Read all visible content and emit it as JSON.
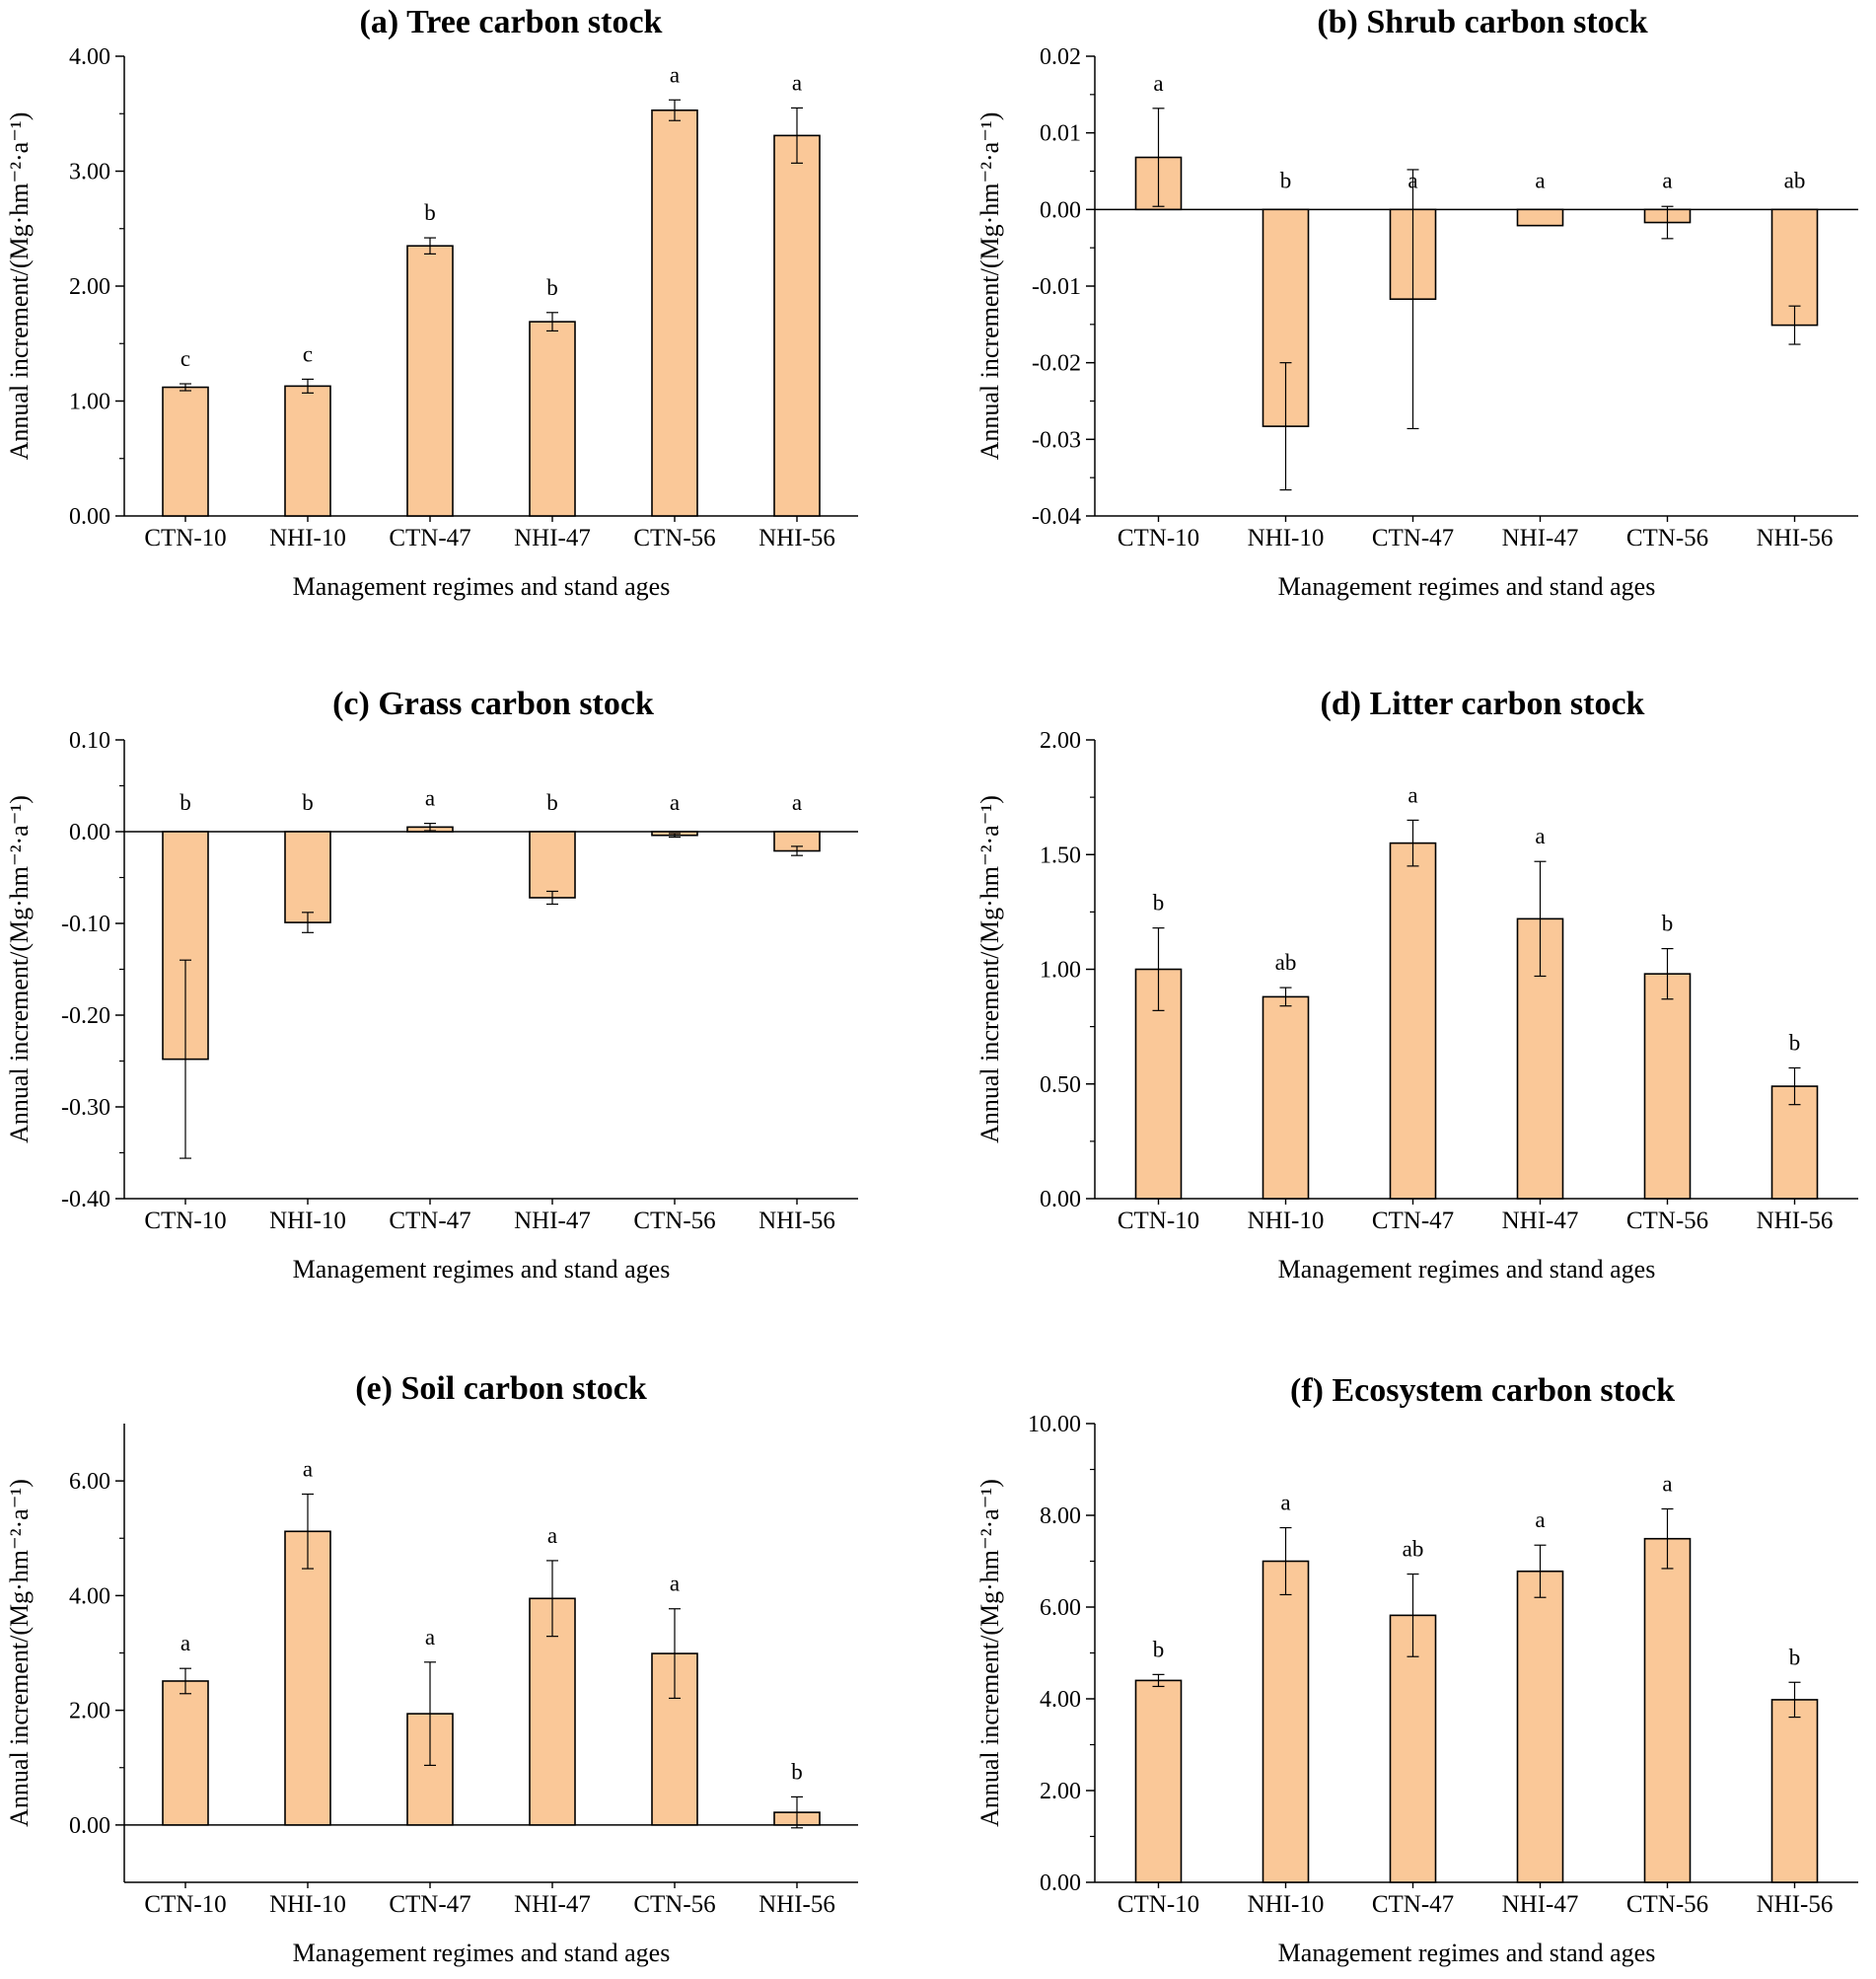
{
  "bar_color": "#FAC898",
  "bar_stroke": "#000000",
  "chart_data": [
    {
      "type": "bar",
      "title": "(a)  Tree carbon stock",
      "xlabel": "Management regimes and stand ages",
      "ylabel": "Annual increment/(Mg·hm⁻²·a⁻¹)",
      "categories": [
        "CTN-10",
        "NHI-10",
        "CTN-47",
        "NHI-47",
        "CTN-56",
        "NHI-56"
      ],
      "values": [
        1.12,
        1.13,
        2.35,
        1.69,
        3.53,
        3.31
      ],
      "errors": [
        0.03,
        0.06,
        0.07,
        0.08,
        0.09,
        0.24
      ],
      "significance": [
        "c",
        "c",
        "b",
        "b",
        "a",
        "a"
      ],
      "ylim": [
        0,
        4
      ],
      "yticks": [
        0,
        1,
        2,
        3,
        4
      ],
      "ytick_labels": [
        "0.00",
        "1.00",
        "2.00",
        "3.00",
        "4.00"
      ]
    },
    {
      "type": "bar",
      "title": "(b)  Shrub carbon stock",
      "xlabel": "Management regimes and stand ages",
      "ylabel": "Annual increment/(Mg·hm⁻²·a⁻¹)",
      "categories": [
        "CTN-10",
        "NHI-10",
        "CTN-47",
        "NHI-47",
        "CTN-56",
        "NHI-56"
      ],
      "values": [
        0.0068,
        -0.0283,
        -0.0117,
        -0.0021,
        -0.0017,
        -0.0151
      ],
      "errors": [
        0.0064,
        0.0083,
        0.0169,
        0.0,
        0.0021,
        0.0025
      ],
      "significance": [
        "a",
        "b",
        "a",
        "a",
        "a",
        "ab"
      ],
      "ylim": [
        -0.04,
        0.02
      ],
      "yticks": [
        -0.04,
        -0.03,
        -0.02,
        -0.01,
        0,
        0.01,
        0.02
      ],
      "ytick_labels": [
        "-0.04",
        "-0.03",
        "-0.02",
        "-0.01",
        "0.00",
        "0.01",
        "0.02"
      ]
    },
    {
      "type": "bar",
      "title": "(c)  Grass carbon stock",
      "xlabel": "Management regimes and stand ages",
      "ylabel": "Annual increment/(Mg·hm⁻²·a⁻¹)",
      "categories": [
        "CTN-10",
        "NHI-10",
        "CTN-47",
        "NHI-47",
        "CTN-56",
        "NHI-56"
      ],
      "values": [
        -0.248,
        -0.099,
        0.005,
        -0.072,
        -0.004,
        -0.021
      ],
      "errors": [
        0.108,
        0.011,
        0.004,
        0.007,
        0.002,
        0.005
      ],
      "significance": [
        "b",
        "b",
        "a",
        "b",
        "a",
        "a"
      ],
      "ylim": [
        -0.4,
        0.1
      ],
      "yticks": [
        -0.4,
        -0.3,
        -0.2,
        -0.1,
        0,
        0.1
      ],
      "ytick_labels": [
        "-0.40",
        "-0.30",
        "-0.20",
        "-0.10",
        "0.00",
        "0.10"
      ]
    },
    {
      "type": "bar",
      "title": "(d)  Litter carbon stock",
      "xlabel": "Management regimes and stand ages",
      "ylabel": "Annual increment/(Mg·hm⁻²·a⁻¹)",
      "categories": [
        "CTN-10",
        "NHI-10",
        "CTN-47",
        "NHI-47",
        "CTN-56",
        "NHI-56"
      ],
      "values": [
        1.0,
        0.88,
        1.55,
        1.22,
        0.98,
        0.49
      ],
      "errors": [
        0.18,
        0.04,
        0.1,
        0.25,
        0.11,
        0.08
      ],
      "significance": [
        "b",
        "ab",
        "a",
        "a",
        "b",
        "b"
      ],
      "ylim": [
        0,
        2
      ],
      "yticks": [
        0,
        0.5,
        1,
        1.5,
        2
      ],
      "ytick_labels": [
        "0.00",
        "0.50",
        "1.00",
        "1.50",
        "2.00"
      ]
    },
    {
      "type": "bar",
      "title": "(e)  Soil carbon stock",
      "xlabel": "Management regimes and stand ages",
      "ylabel": "Annual increment/(Mg·hm⁻²·a⁻¹)",
      "categories": [
        "CTN-10",
        "NHI-10",
        "CTN-47",
        "NHI-47",
        "CTN-56",
        "NHI-56"
      ],
      "values": [
        2.51,
        5.12,
        1.94,
        3.95,
        2.99,
        0.22
      ],
      "errors": [
        0.22,
        0.65,
        0.9,
        0.66,
        0.78,
        0.27
      ],
      "significance": [
        "a",
        "a",
        "a",
        "a",
        "a",
        "b"
      ],
      "ylim": [
        -1,
        7
      ],
      "yticks": [
        0,
        2,
        4,
        6
      ],
      "ytick_labels": [
        "0.00",
        "2.00",
        "4.00",
        "6.00"
      ]
    },
    {
      "type": "bar",
      "title": "(f)  Ecosystem carbon stock",
      "xlabel": "Management regimes and stand ages",
      "ylabel": "Annual increment/(Mg·hm⁻²·a⁻¹)",
      "categories": [
        "CTN-10",
        "NHI-10",
        "CTN-47",
        "NHI-47",
        "CTN-56",
        "NHI-56"
      ],
      "values": [
        4.4,
        7.0,
        5.82,
        6.78,
        7.49,
        3.98
      ],
      "errors": [
        0.13,
        0.73,
        0.9,
        0.57,
        0.65,
        0.38
      ],
      "significance": [
        "b",
        "a",
        "ab",
        "a",
        "a",
        "b"
      ],
      "ylim": [
        0,
        10
      ],
      "yticks": [
        0,
        2,
        4,
        6,
        8,
        10
      ],
      "ytick_labels": [
        "0.00",
        "2.00",
        "4.00",
        "6.00",
        "8.00",
        "10.00"
      ]
    }
  ]
}
